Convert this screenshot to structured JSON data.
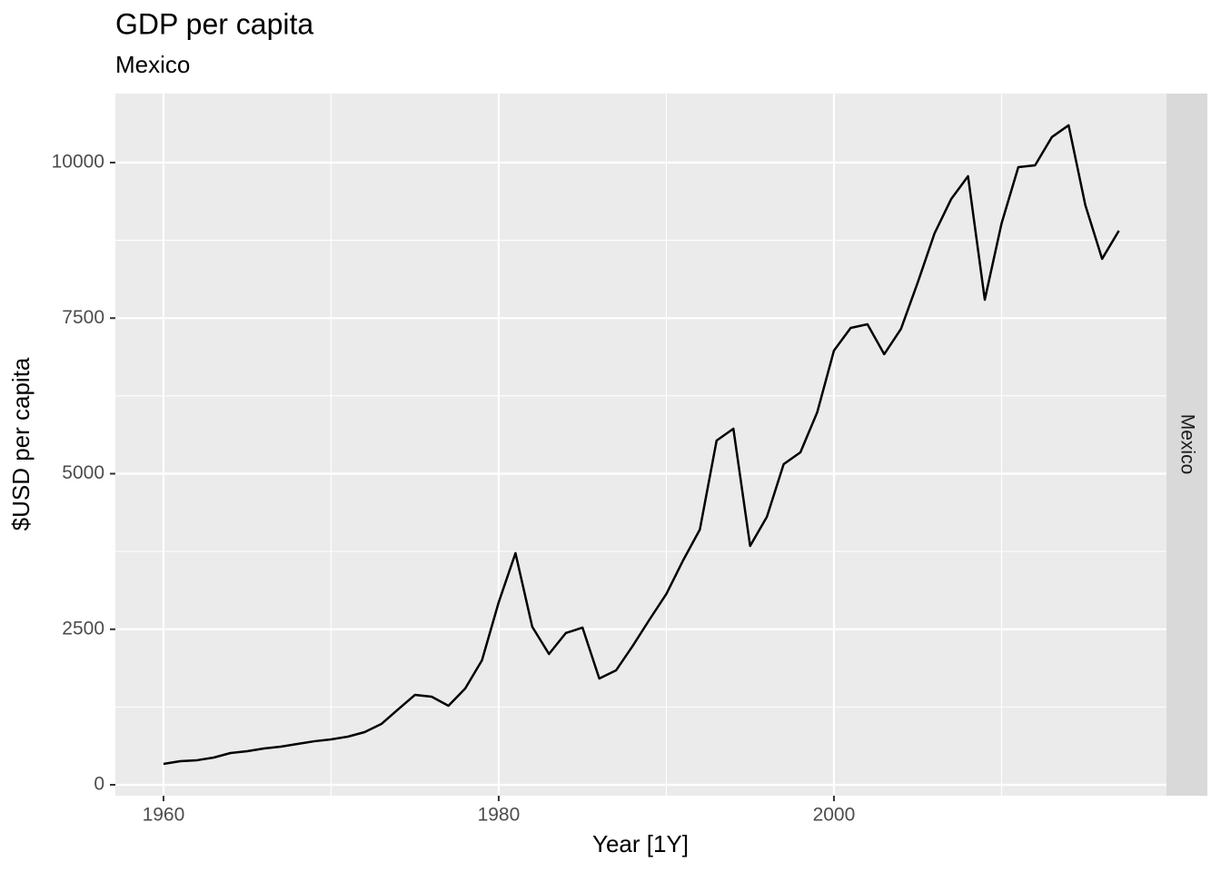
{
  "chart_data": {
    "type": "line",
    "title": "GDP per capita",
    "subtitle": "Mexico",
    "x_label": "Year [1Y]",
    "y_label": "$USD per capita",
    "facet_label": "Mexico",
    "x": [
      1960,
      1961,
      1962,
      1963,
      1964,
      1965,
      1966,
      1967,
      1968,
      1969,
      1970,
      1971,
      1972,
      1973,
      1974,
      1975,
      1976,
      1977,
      1978,
      1979,
      1980,
      1981,
      1982,
      1983,
      1984,
      1985,
      1986,
      1987,
      1988,
      1989,
      1990,
      1991,
      1992,
      1993,
      1994,
      1995,
      1996,
      1997,
      1998,
      1999,
      2000,
      2001,
      2002,
      2003,
      2004,
      2005,
      2006,
      2007,
      2008,
      2009,
      2010,
      2011,
      2012,
      2013,
      2014,
      2015,
      2016,
      2017
    ],
    "values": [
      336,
      380,
      395,
      438,
      511,
      540,
      584,
      613,
      657,
      700,
      730,
      774,
      847,
      978,
      1212,
      1445,
      1416,
      1270,
      1547,
      2000,
      2934,
      3723,
      2540,
      2102,
      2438,
      2526,
      1708,
      1839,
      2234,
      2657,
      3066,
      3606,
      4102,
      5533,
      5723,
      3839,
      4307,
      5153,
      5343,
      5985,
      6978,
      7343,
      7401,
      6920,
      7328,
      8073,
      8861,
      9416,
      9781,
      7796,
      9022,
      9927,
      9956,
      10409,
      10599,
      9314,
      8453,
      8905
    ],
    "color": "#000000",
    "xlim": [
      1957.13,
      2019.84
    ],
    "ylim": [
      -175,
      11109
    ],
    "xticks": [
      1960,
      1980,
      2000
    ],
    "yticks": [
      0,
      2500,
      5000,
      7500,
      10000
    ],
    "x_minor_ticks": [
      1970,
      1990,
      2010
    ],
    "y_minor_ticks": [
      1250,
      3750,
      6250,
      8750
    ],
    "grid": true
  }
}
